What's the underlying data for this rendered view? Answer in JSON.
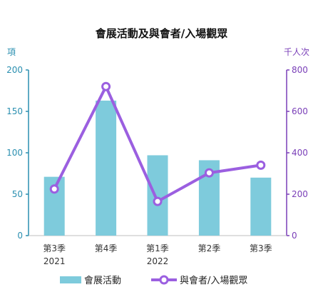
{
  "chart_data": {
    "type": "bar+line",
    "title": "會展活動及與會者/入場觀眾",
    "categories": [
      {
        "line1": "第3季",
        "line2": "2021"
      },
      {
        "line1": "第4季",
        "line2": ""
      },
      {
        "line1": "第1季",
        "line2": "2022"
      },
      {
        "line1": "第2季",
        "line2": ""
      },
      {
        "line1": "第3季",
        "line2": ""
      }
    ],
    "left_axis": {
      "unit_label": "項",
      "ylim": [
        0,
        200
      ],
      "ticks": [
        "0",
        "50",
        "100",
        "150",
        "200"
      ],
      "color": "#2a8fb0"
    },
    "right_axis": {
      "unit_label": "千人次",
      "ylim": [
        0,
        800
      ],
      "ticks": [
        "0",
        "200",
        "400",
        "600",
        "800"
      ],
      "color": "#7a3fb8"
    },
    "series": [
      {
        "name": "會展活動",
        "type": "bar",
        "axis": "left",
        "values": [
          71,
          163,
          97,
          91,
          70
        ],
        "color": "#7ecbdc"
      },
      {
        "name": "與會者/入場觀眾",
        "type": "line",
        "axis": "right",
        "values": [
          225,
          720,
          165,
          303,
          340
        ],
        "color": "#9b5fe0"
      }
    ],
    "legend_position": "bottom",
    "grid": false
  }
}
